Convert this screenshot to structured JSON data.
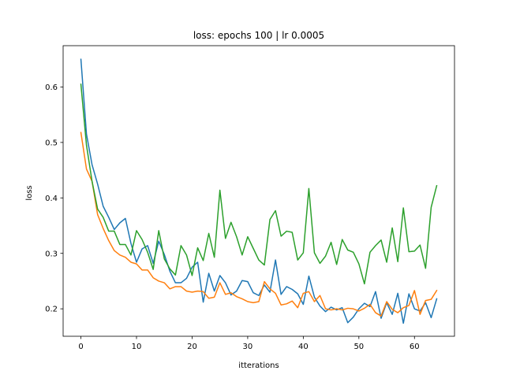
{
  "chart_data": {
    "type": "line",
    "title": "loss: epochs 100 | lr 0.0005",
    "xlabel": "itterations",
    "ylabel": "loss",
    "xlim": [
      -3.2,
      67.2
    ],
    "ylim": [
      0.1505,
      0.6745
    ],
    "xticks": [
      0,
      10,
      20,
      30,
      40,
      50,
      60
    ],
    "yticks": [
      0.2,
      0.3,
      0.4,
      0.5,
      0.6
    ],
    "grid": false,
    "legend": "none",
    "series": [
      {
        "color": "#1f77b4",
        "x": [
          0,
          1,
          2,
          3,
          4,
          5,
          6,
          7,
          8,
          9,
          10,
          11,
          12,
          13,
          14,
          15,
          16,
          17,
          18,
          19,
          20,
          21,
          22,
          23,
          24,
          25,
          26,
          27,
          28,
          29,
          30,
          31,
          32,
          33,
          34,
          35,
          36,
          37,
          38,
          39,
          40,
          41,
          42,
          43,
          44,
          45,
          46,
          47,
          48,
          49,
          50,
          51,
          52,
          53,
          54,
          55,
          56,
          57,
          58,
          59,
          60,
          61,
          62,
          63,
          64
        ],
        "y": [
          0.65,
          0.515,
          0.46,
          0.425,
          0.385,
          0.365,
          0.343,
          0.355,
          0.363,
          0.318,
          0.284,
          0.308,
          0.314,
          0.282,
          0.322,
          0.298,
          0.268,
          0.247,
          0.247,
          0.255,
          0.275,
          0.284,
          0.212,
          0.264,
          0.232,
          0.26,
          0.247,
          0.225,
          0.232,
          0.251,
          0.249,
          0.229,
          0.224,
          0.243,
          0.23,
          0.288,
          0.226,
          0.24,
          0.235,
          0.227,
          0.208,
          0.259,
          0.221,
          0.205,
          0.195,
          0.203,
          0.198,
          0.202,
          0.175,
          0.185,
          0.2,
          0.21,
          0.204,
          0.231,
          0.183,
          0.211,
          0.19,
          0.228,
          0.174,
          0.227,
          0.2,
          0.196,
          0.211,
          0.184,
          0.218
        ]
      },
      {
        "color": "#ff7f0e",
        "x": [
          0,
          1,
          2,
          3,
          4,
          5,
          6,
          7,
          8,
          9,
          10,
          11,
          12,
          13,
          14,
          15,
          16,
          17,
          18,
          19,
          20,
          21,
          22,
          23,
          24,
          25,
          26,
          27,
          28,
          29,
          30,
          31,
          32,
          33,
          34,
          35,
          36,
          37,
          38,
          39,
          40,
          41,
          42,
          43,
          44,
          45,
          46,
          47,
          48,
          49,
          50,
          51,
          52,
          53,
          54,
          55,
          56,
          57,
          58,
          59,
          60,
          61,
          62,
          63,
          64
        ],
        "y": [
          0.518,
          0.452,
          0.43,
          0.37,
          0.345,
          0.323,
          0.305,
          0.297,
          0.293,
          0.284,
          0.281,
          0.27,
          0.27,
          0.256,
          0.25,
          0.247,
          0.236,
          0.24,
          0.24,
          0.232,
          0.23,
          0.232,
          0.231,
          0.219,
          0.221,
          0.247,
          0.226,
          0.229,
          0.222,
          0.218,
          0.213,
          0.211,
          0.213,
          0.249,
          0.236,
          0.228,
          0.207,
          0.209,
          0.214,
          0.202,
          0.228,
          0.231,
          0.213,
          0.224,
          0.2,
          0.198,
          0.2,
          0.198,
          0.201,
          0.2,
          0.196,
          0.201,
          0.208,
          0.193,
          0.187,
          0.213,
          0.199,
          0.193,
          0.202,
          0.206,
          0.233,
          0.19,
          0.215,
          0.217,
          0.233
        ]
      },
      {
        "color": "#2ca02c",
        "x": [
          0,
          1,
          2,
          3,
          4,
          5,
          6,
          7,
          8,
          9,
          10,
          11,
          12,
          13,
          14,
          15,
          16,
          17,
          18,
          19,
          20,
          21,
          22,
          23,
          24,
          25,
          26,
          27,
          28,
          29,
          30,
          31,
          32,
          33,
          34,
          35,
          36,
          37,
          38,
          39,
          40,
          41,
          42,
          43,
          44,
          45,
          46,
          47,
          48,
          49,
          50,
          51,
          52,
          53,
          54,
          55,
          56,
          57,
          58,
          59,
          60,
          61,
          62,
          63,
          64
        ],
        "y": [
          0.605,
          0.495,
          0.43,
          0.38,
          0.365,
          0.34,
          0.34,
          0.316,
          0.316,
          0.297,
          0.341,
          0.325,
          0.302,
          0.271,
          0.341,
          0.29,
          0.272,
          0.261,
          0.314,
          0.297,
          0.26,
          0.31,
          0.287,
          0.336,
          0.293,
          0.414,
          0.327,
          0.356,
          0.33,
          0.297,
          0.33,
          0.309,
          0.288,
          0.279,
          0.361,
          0.377,
          0.331,
          0.34,
          0.338,
          0.288,
          0.301,
          0.417,
          0.301,
          0.282,
          0.295,
          0.32,
          0.28,
          0.325,
          0.306,
          0.302,
          0.281,
          0.245,
          0.302,
          0.314,
          0.324,
          0.284,
          0.346,
          0.285,
          0.382,
          0.303,
          0.304,
          0.315,
          0.273,
          0.383,
          0.422
        ]
      }
    ]
  }
}
